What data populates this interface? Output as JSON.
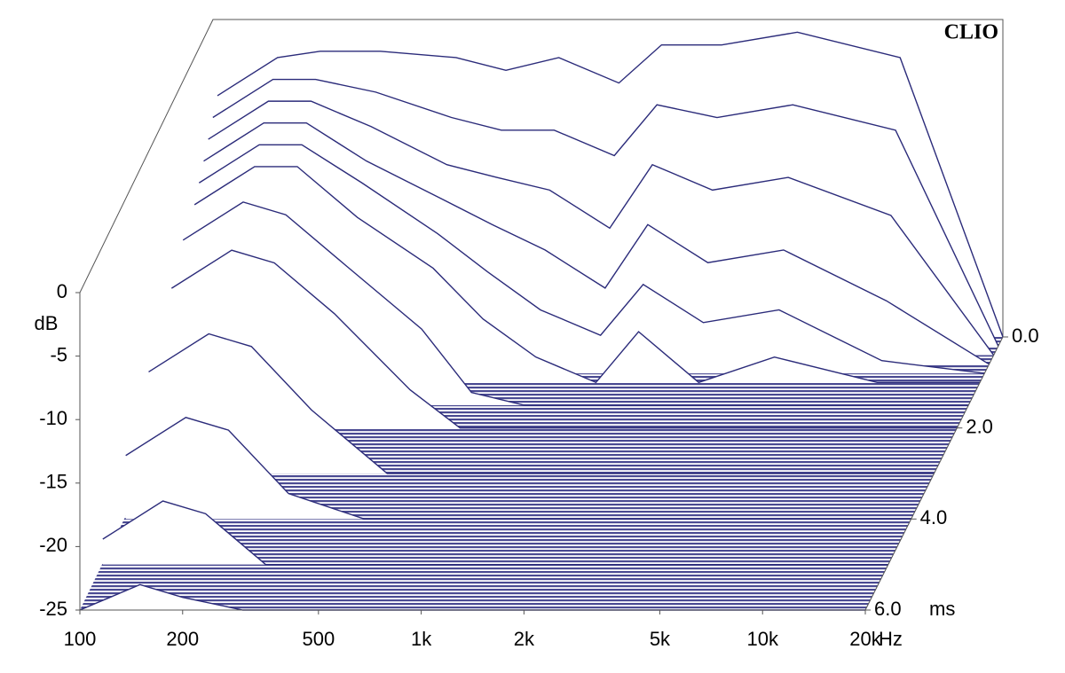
{
  "chart_data": {
    "type": "waterfall",
    "title": "CLIO",
    "x": [
      100,
      150,
      200,
      300,
      500,
      700,
      1000,
      1500,
      2000,
      3000,
      5000,
      10000,
      20000
    ],
    "x_label": "Hz",
    "y_label": "dB",
    "z_label": "ms",
    "color": "#2b2b7a",
    "log_x": true,
    "xlim": [
      100,
      20000
    ],
    "xticks": [
      100,
      200,
      500,
      {
        "value": 1000,
        "label": "1k"
      },
      {
        "value": 2000,
        "label": "2k"
      },
      {
        "value": 5000,
        "label": "5k"
      },
      {
        "value": 10000,
        "label": "10k"
      },
      {
        "value": 20000,
        "label": "20k"
      }
    ],
    "ylim": [
      -25,
      0
    ],
    "yticks": [
      0,
      -5,
      -10,
      -15,
      -20,
      -25
    ],
    "zlim": [
      0,
      6
    ],
    "zticks": [
      {
        "value": 0,
        "label": "0.0"
      },
      {
        "value": 2,
        "label": "2.0"
      },
      {
        "value": 4,
        "label": "4.0"
      },
      {
        "value": 6,
        "label": "6.0"
      }
    ],
    "series": [
      {
        "time": 0,
        "values": [
          -6,
          -3,
          -2.5,
          -2.5,
          -3,
          -4,
          -3,
          -5,
          -2,
          -2,
          -1,
          -3,
          -25
        ]
      },
      {
        "time": 0.2,
        "values": [
          -7,
          -4,
          -4,
          -5,
          -7,
          -8,
          -8,
          -10,
          -6,
          -7,
          -6,
          -8,
          -25
        ]
      },
      {
        "time": 0.4,
        "values": [
          -8,
          -5,
          -5,
          -7,
          -10,
          -11,
          -12,
          -15,
          -10,
          -12,
          -11,
          -14,
          -25
        ]
      },
      {
        "time": 0.6,
        "values": [
          -9,
          -6,
          -6,
          -9,
          -12,
          -14,
          -16,
          -19,
          -14,
          -17,
          -16,
          -20,
          -25
        ]
      },
      {
        "time": 0.8,
        "values": [
          -10,
          -7,
          -7,
          -10,
          -14,
          -17,
          -20,
          -22,
          -18,
          -21,
          -20,
          -24,
          -25
        ]
      },
      {
        "time": 1,
        "values": [
          -11,
          -8,
          -8,
          -12,
          -16,
          -20,
          -23,
          -25,
          -21,
          -25,
          -23,
          -25,
          -25
        ]
      },
      {
        "time": 1.5,
        "values": [
          -12,
          -9,
          -10,
          -14,
          -19,
          -24,
          -25,
          -25,
          -25,
          -25,
          -25,
          -25,
          -25
        ]
      },
      {
        "time": 2,
        "values": [
          -14,
          -11,
          -12,
          -16,
          -22,
          -25,
          -25,
          -25,
          -25,
          -25,
          -25,
          -25,
          -25
        ]
      },
      {
        "time": 3,
        "values": [
          -17,
          -14,
          -15,
          -20,
          -25,
          -25,
          -25,
          -25,
          -25,
          -25,
          -25,
          -25,
          -25
        ]
      },
      {
        "time": 4,
        "values": [
          -20,
          -17,
          -18,
          -23,
          -25,
          -25,
          -25,
          -25,
          -25,
          -25,
          -25,
          -25,
          -25
        ]
      },
      {
        "time": 5,
        "values": [
          -23,
          -20,
          -21,
          -25,
          -25,
          -25,
          -25,
          -25,
          -25,
          -25,
          -25,
          -25,
          -25
        ]
      },
      {
        "time": 6,
        "values": [
          -25,
          -23,
          -24,
          -25,
          -25,
          -25,
          -25,
          -25,
          -25,
          -25,
          -25,
          -25,
          -25
        ]
      }
    ]
  }
}
